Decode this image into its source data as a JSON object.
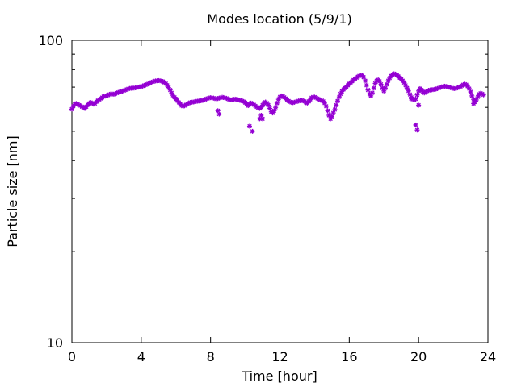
{
  "chart_data": {
    "type": "scatter",
    "title": "Modes location (5/9/1)",
    "xlabel": "Time [hour]",
    "ylabel": "Particle size [nm]",
    "xlim": [
      0,
      24
    ],
    "ylim": [
      10,
      100
    ],
    "y_scale": "log",
    "x_ticks": [
      0,
      4,
      8,
      12,
      16,
      20,
      24
    ],
    "x_tick_labels": [
      "0",
      "4",
      "8",
      "12",
      "16",
      "20",
      "24"
    ],
    "y_tick_labels": [
      "10",
      "100"
    ],
    "grid": false,
    "marker_color": "#9400d3",
    "series": [
      {
        "x": [
          0.0,
          0.08,
          0.17,
          0.25,
          0.33,
          0.42,
          0.5,
          0.58,
          0.67,
          0.75,
          0.83,
          0.92,
          1.0,
          1.08,
          1.17,
          1.25,
          1.33,
          1.42,
          1.5,
          1.58,
          1.67,
          1.75,
          1.83,
          1.92,
          2.0,
          2.08,
          2.17,
          2.25,
          2.33,
          2.42,
          2.5,
          2.58,
          2.67,
          2.75,
          2.83,
          2.92,
          3.0,
          3.08,
          3.17,
          3.25,
          3.33,
          3.42,
          3.5,
          3.58,
          3.67,
          3.75,
          3.83,
          3.92,
          4.0,
          4.08,
          4.17,
          4.25,
          4.33,
          4.42,
          4.5,
          4.58,
          4.67,
          4.75,
          4.83,
          4.92,
          5.0,
          5.08,
          5.17,
          5.25,
          5.33,
          5.42,
          5.5,
          5.58,
          5.67,
          5.75,
          5.83,
          5.92,
          6.0,
          6.08,
          6.17,
          6.25,
          6.33,
          6.42,
          6.5,
          6.58,
          6.67,
          6.75,
          6.83,
          6.92,
          7.0,
          7.08,
          7.17,
          7.25,
          7.33,
          7.42,
          7.5,
          7.58,
          7.67,
          7.75,
          7.83,
          7.92,
          8.0,
          8.08,
          8.17,
          8.25,
          8.33,
          8.42,
          8.5,
          8.58,
          8.67,
          8.75,
          8.83,
          8.92,
          9.0,
          9.08,
          9.17,
          9.25,
          9.33,
          9.42,
          9.5,
          9.58,
          9.67,
          9.75,
          9.83,
          9.92,
          10.0,
          10.08,
          10.17,
          10.25,
          10.33,
          10.42,
          10.5,
          10.58,
          10.67,
          10.75,
          10.83,
          10.92,
          11.0,
          11.08,
          11.17,
          11.25,
          11.33,
          11.42,
          11.5,
          11.58,
          11.67,
          11.75,
          11.83,
          11.92,
          12.0,
          12.08,
          12.17,
          12.25,
          12.33,
          12.42,
          12.5,
          12.58,
          12.67,
          12.75,
          12.83,
          12.92,
          13.0,
          13.08,
          13.17,
          13.25,
          13.33,
          13.42,
          13.5,
          13.58,
          13.67,
          13.75,
          13.83,
          13.92,
          14.0,
          14.08,
          14.17,
          14.25,
          14.33,
          14.42,
          14.5,
          14.58,
          14.67,
          14.75,
          14.83,
          14.92,
          15.0,
          15.08,
          15.17,
          15.25,
          15.33,
          15.42,
          15.5,
          15.58,
          15.67,
          15.75,
          15.83,
          15.92,
          16.0,
          16.08,
          16.17,
          16.25,
          16.33,
          16.42,
          16.5,
          16.58,
          16.67,
          16.75,
          16.83,
          16.92,
          17.0,
          17.08,
          17.17,
          17.25,
          17.33,
          17.42,
          17.5,
          17.58,
          17.67,
          17.75,
          17.83,
          17.92,
          18.0,
          18.08,
          18.17,
          18.25,
          18.33,
          18.42,
          18.5,
          18.58,
          18.67,
          18.75,
          18.83,
          18.92,
          19.0,
          19.08,
          19.17,
          19.25,
          19.33,
          19.42,
          19.5,
          19.58,
          19.67,
          19.75,
          19.83,
          19.92,
          20.0,
          20.08,
          20.17,
          20.25,
          20.33,
          20.42,
          20.5,
          20.58,
          20.67,
          20.75,
          20.83,
          20.92,
          21.0,
          21.08,
          21.17,
          21.25,
          21.33,
          21.42,
          21.5,
          21.58,
          21.67,
          21.75,
          21.83,
          21.92,
          22.0,
          22.08,
          22.17,
          22.25,
          22.33,
          22.42,
          22.5,
          22.58,
          22.67,
          22.75,
          22.83,
          22.92,
          23.0,
          23.08,
          23.17,
          23.25,
          23.33,
          23.42,
          23.5,
          23.58,
          23.67,
          23.75,
          8.42,
          8.5,
          10.25,
          10.42,
          10.83,
          10.92,
          11.0,
          19.83,
          19.92,
          19.58,
          20.0,
          23.17
        ],
        "y": [
          59.2,
          60.5,
          61.5,
          61.8,
          61.5,
          61.0,
          60.8,
          60.3,
          59.8,
          59.5,
          60.3,
          61.2,
          61.8,
          62.3,
          62.0,
          61.5,
          61.8,
          62.7,
          63.2,
          63.7,
          64.2,
          64.7,
          65.2,
          65.4,
          65.6,
          65.9,
          66.2,
          66.5,
          66.4,
          66.3,
          66.6,
          66.9,
          67.2,
          67.4,
          67.6,
          67.9,
          68.2,
          68.5,
          68.8,
          69.1,
          69.3,
          69.4,
          69.5,
          69.5,
          69.6,
          69.8,
          70.0,
          70.2,
          70.3,
          70.6,
          70.9,
          71.2,
          71.5,
          71.8,
          72.2,
          72.6,
          72.9,
          73.2,
          73.4,
          73.5,
          73.6,
          73.5,
          73.3,
          73.1,
          72.6,
          71.9,
          71.0,
          69.8,
          68.5,
          67.0,
          65.8,
          64.8,
          64.0,
          63.2,
          62.3,
          61.5,
          60.8,
          60.5,
          60.8,
          61.2,
          61.7,
          62.0,
          62.3,
          62.4,
          62.5,
          62.6,
          62.8,
          62.9,
          63.0,
          63.1,
          63.2,
          63.4,
          63.7,
          64.0,
          64.2,
          64.5,
          64.6,
          64.6,
          64.4,
          64.2,
          64.0,
          64.2,
          64.4,
          64.6,
          64.8,
          64.7,
          64.5,
          64.3,
          64.0,
          63.7,
          63.5,
          63.6,
          63.8,
          63.9,
          63.8,
          63.6,
          63.4,
          63.2,
          63.0,
          62.7,
          62.2,
          61.5,
          60.8,
          61.3,
          62.0,
          61.8,
          61.2,
          60.7,
          60.2,
          59.8,
          59.5,
          60.0,
          61.0,
          62.0,
          62.5,
          62.0,
          61.0,
          59.5,
          58.0,
          57.5,
          58.5,
          60.0,
          62.0,
          63.8,
          65.0,
          65.5,
          65.3,
          64.8,
          64.2,
          63.6,
          63.0,
          62.6,
          62.3,
          62.2,
          62.4,
          62.6,
          62.8,
          63.0,
          63.2,
          63.3,
          63.1,
          62.8,
          62.3,
          62.0,
          62.8,
          63.8,
          64.6,
          65.0,
          64.9,
          64.6,
          64.2,
          63.8,
          63.5,
          63.2,
          62.8,
          62.0,
          60.5,
          58.5,
          56.5,
          55.0,
          56.0,
          57.5,
          59.0,
          61.0,
          63.0,
          65.0,
          66.5,
          67.8,
          68.8,
          69.5,
          70.2,
          71.0,
          71.8,
          72.5,
          73.2,
          73.9,
          74.6,
          75.2,
          75.8,
          76.3,
          76.6,
          76.5,
          75.5,
          73.5,
          71.0,
          68.5,
          66.5,
          65.5,
          67.0,
          69.5,
          72.0,
          73.5,
          74.0,
          73.2,
          71.5,
          69.5,
          68.0,
          69.5,
          71.5,
          73.5,
          75.0,
          76.2,
          77.0,
          77.5,
          77.3,
          76.8,
          76.0,
          75.2,
          74.3,
          73.5,
          72.5,
          71.0,
          69.5,
          68.0,
          66.2,
          64.8,
          64.0,
          63.5,
          64.0,
          66.0,
          68.0,
          69.2,
          68.5,
          67.5,
          67.0,
          67.5,
          68.0,
          68.3,
          68.5,
          68.6,
          68.7,
          68.8,
          69.0,
          69.2,
          69.5,
          69.8,
          70.1,
          70.4,
          70.5,
          70.4,
          70.2,
          70.0,
          69.8,
          69.5,
          69.3,
          69.2,
          69.4,
          69.7,
          70.0,
          70.3,
          70.8,
          71.3,
          71.6,
          71.3,
          70.5,
          69.2,
          67.5,
          65.5,
          63.8,
          62.5,
          63.5,
          65.0,
          66.3,
          66.8,
          66.5,
          66.0,
          58.5,
          57.0,
          52.0,
          50.0,
          55.0,
          56.5,
          55.0,
          52.5,
          50.5,
          64.0,
          61.0,
          61.8
        ]
      }
    ]
  }
}
